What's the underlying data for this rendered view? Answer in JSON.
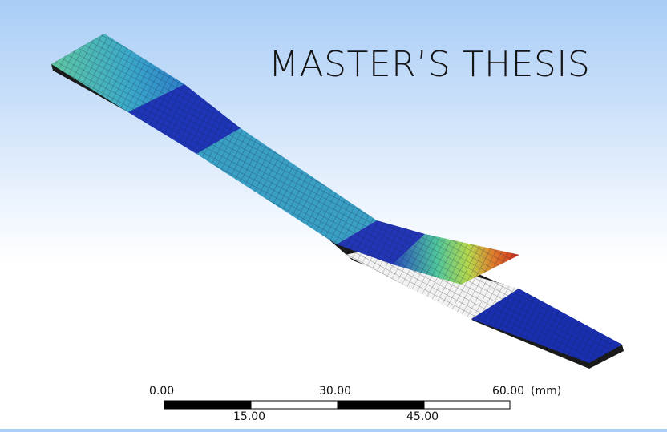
{
  "title": "MASTER’S THESIS",
  "scale_bar": {
    "labels_top": [
      "0.00",
      "30.00",
      "60.00"
    ],
    "labels_bottom": [
      "15.00",
      "45.00"
    ],
    "unit": "(mm)"
  },
  "colors": {
    "mesh_blue": "#1a2fb0",
    "mesh_cyan": "#3aa7c9",
    "mesh_green": "#7fd07a",
    "mesh_red": "#d83a1e",
    "mesh_white": "#f2f2f2"
  }
}
